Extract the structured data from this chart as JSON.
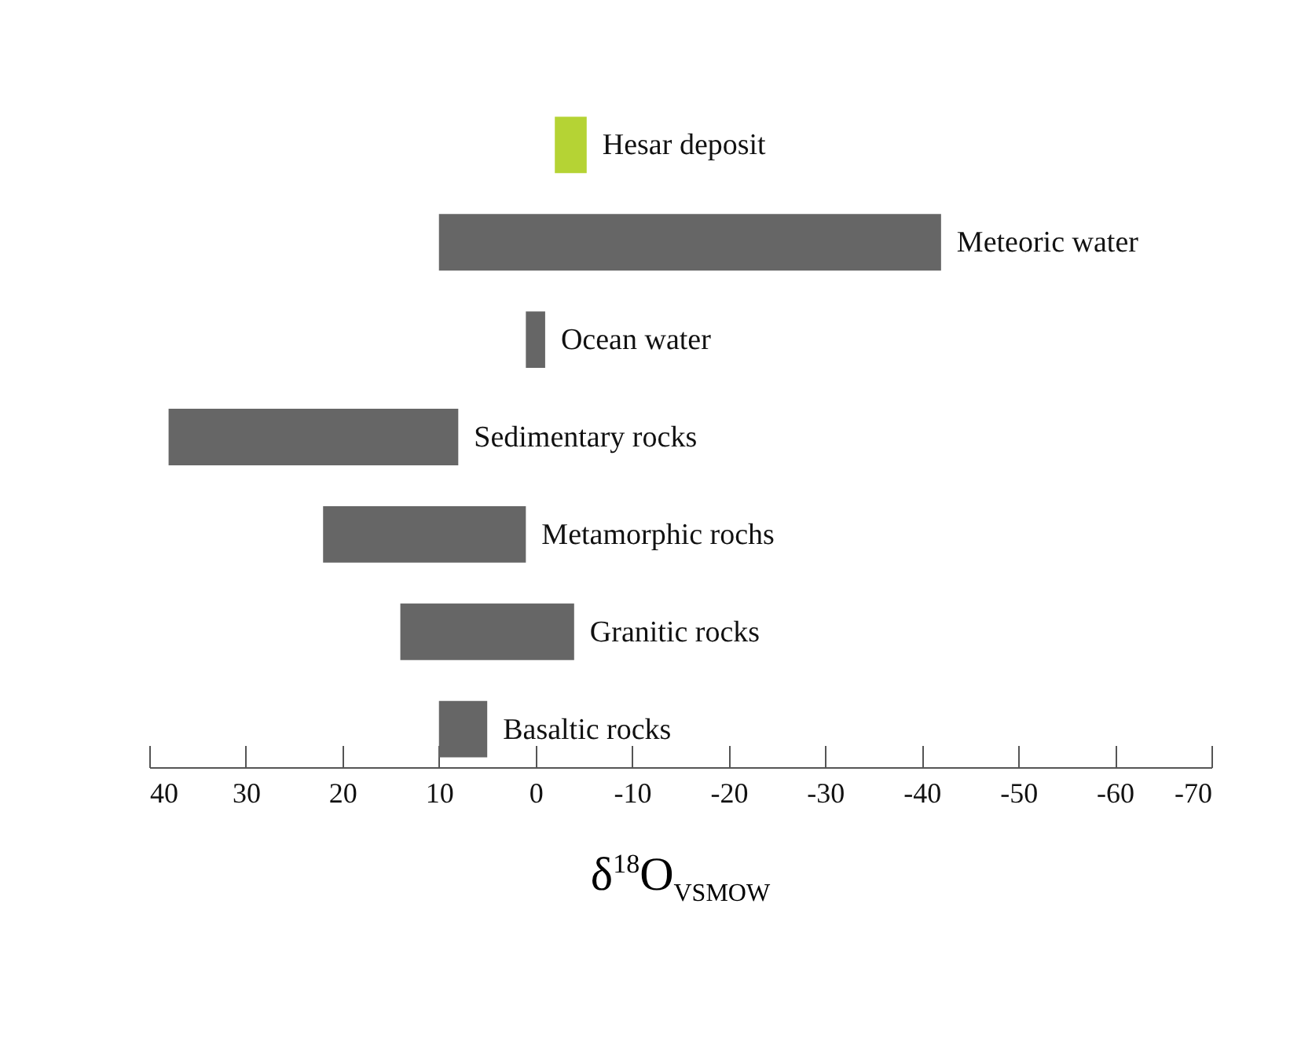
{
  "chart_data": {
    "type": "bar",
    "orientation": "horizontal",
    "xlabel": "δ$^{18}$O$_{VSMOW}$",
    "categories": [
      "Hesar deposit",
      "Meteoric water",
      "Ocean water",
      "Sedimentary rocks",
      "Metamorphic rochs",
      "Granitic rocks",
      "Basaltic rocks"
    ],
    "base": [
      -2,
      10,
      1,
      38,
      22,
      14,
      10
    ],
    "values": [
      -3.3,
      -52,
      -2,
      -30,
      -21,
      -18,
      -5
    ],
    "colors": [
      "#b5d334",
      "#666666",
      "#666666",
      "#666666",
      "#666666",
      "#666666",
      "#666666"
    ],
    "xlim": [
      40,
      -70
    ],
    "xticks": [
      40,
      30,
      20,
      10,
      0,
      -10,
      -20,
      -30,
      -40,
      -50,
      -60,
      -70
    ],
    "grid": false
  }
}
